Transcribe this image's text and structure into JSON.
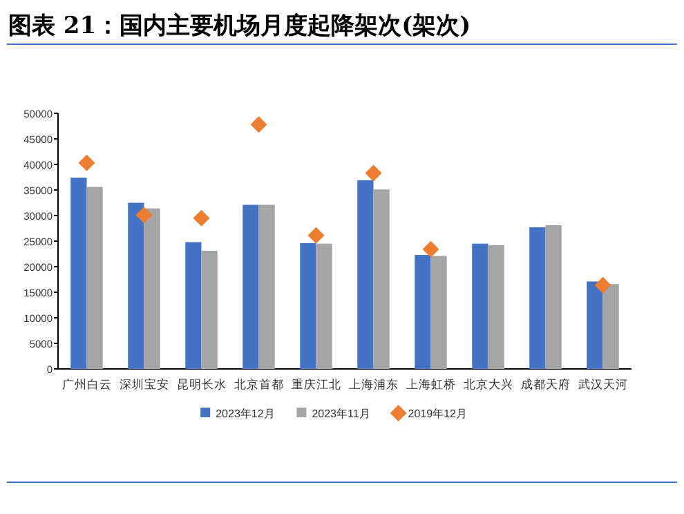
{
  "chart_data": {
    "type": "bar",
    "title": "图表 21：国内主要机场月度起降架次(架次)",
    "categories": [
      "广州白云",
      "深圳宝安",
      "昆明长水",
      "北京首都",
      "重庆江北",
      "上海浦东",
      "上海虹桥",
      "北京大兴",
      "成都天府",
      "武汉天河"
    ],
    "series": [
      {
        "name": "2023年12月",
        "color": "#4472c4",
        "values": [
          37400,
          32500,
          24800,
          32100,
          24600,
          36900,
          22300,
          24500,
          27700,
          17100
        ]
      },
      {
        "name": "2023年11月",
        "color": "#a5a5a5",
        "values": [
          35600,
          31400,
          23100,
          32100,
          24500,
          35100,
          22100,
          24200,
          28100,
          16600
        ]
      },
      {
        "name": "2019年12月",
        "color": "#ed7d31",
        "type": "scatter",
        "values": [
          40300,
          30100,
          29500,
          47800,
          26100,
          38300,
          23400,
          null,
          null,
          16400
        ]
      }
    ],
    "marker": "diamond",
    "ylim": [
      0,
      50000
    ],
    "yticks": [
      0,
      5000,
      10000,
      15000,
      20000,
      25000,
      30000,
      35000,
      40000,
      45000,
      50000
    ],
    "grid": false,
    "legend": "bottom"
  }
}
